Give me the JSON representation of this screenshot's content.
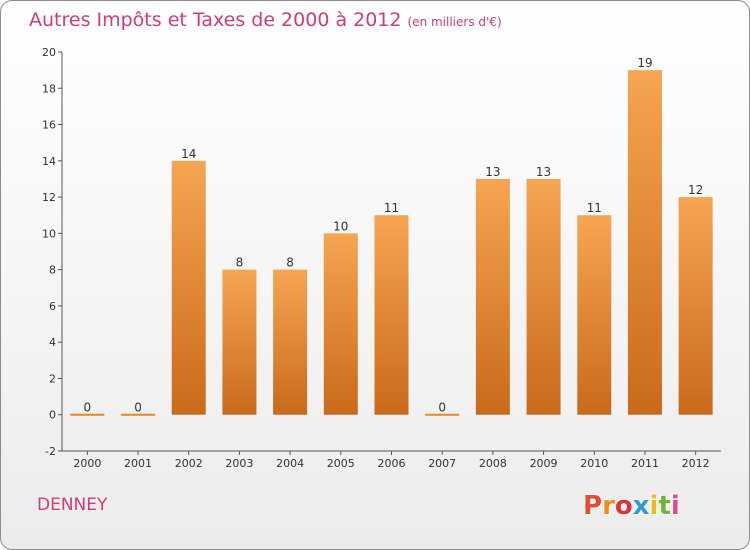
{
  "header": {
    "title": "Autres Impôts et Taxes de 2000 à 2012",
    "subtitle": "(en milliers d'€)"
  },
  "footer": {
    "place": "DENNEY",
    "logo": "Proxiti"
  },
  "colors": {
    "title": "#d23c74",
    "bar_top": "#f6a552",
    "bar_bottom": "#c96a1a",
    "logo_letters": [
      "#e34b33",
      "#f28b1c",
      "#e0303e",
      "#2f9bd6",
      "#f5b51c",
      "#6cb33f",
      "#e04a8f"
    ]
  },
  "chart_data": {
    "type": "bar",
    "categories": [
      "2000",
      "2001",
      "2002",
      "2003",
      "2004",
      "2005",
      "2006",
      "2007",
      "2008",
      "2009",
      "2010",
      "2011",
      "2012"
    ],
    "values": [
      0,
      0,
      14,
      8,
      8,
      10,
      11,
      0,
      13,
      13,
      11,
      19,
      12
    ],
    "data_labels": [
      "0",
      "0",
      "14",
      "8",
      "8",
      "10",
      "11",
      "0",
      "13",
      "13",
      "11",
      "19",
      "12"
    ],
    "yticks": [
      -2,
      0,
      2,
      4,
      6,
      8,
      10,
      12,
      14,
      16,
      18,
      20
    ],
    "ylim": [
      -2,
      20
    ],
    "xlabel": "",
    "ylabel": "",
    "grid": false,
    "legend": "none"
  }
}
